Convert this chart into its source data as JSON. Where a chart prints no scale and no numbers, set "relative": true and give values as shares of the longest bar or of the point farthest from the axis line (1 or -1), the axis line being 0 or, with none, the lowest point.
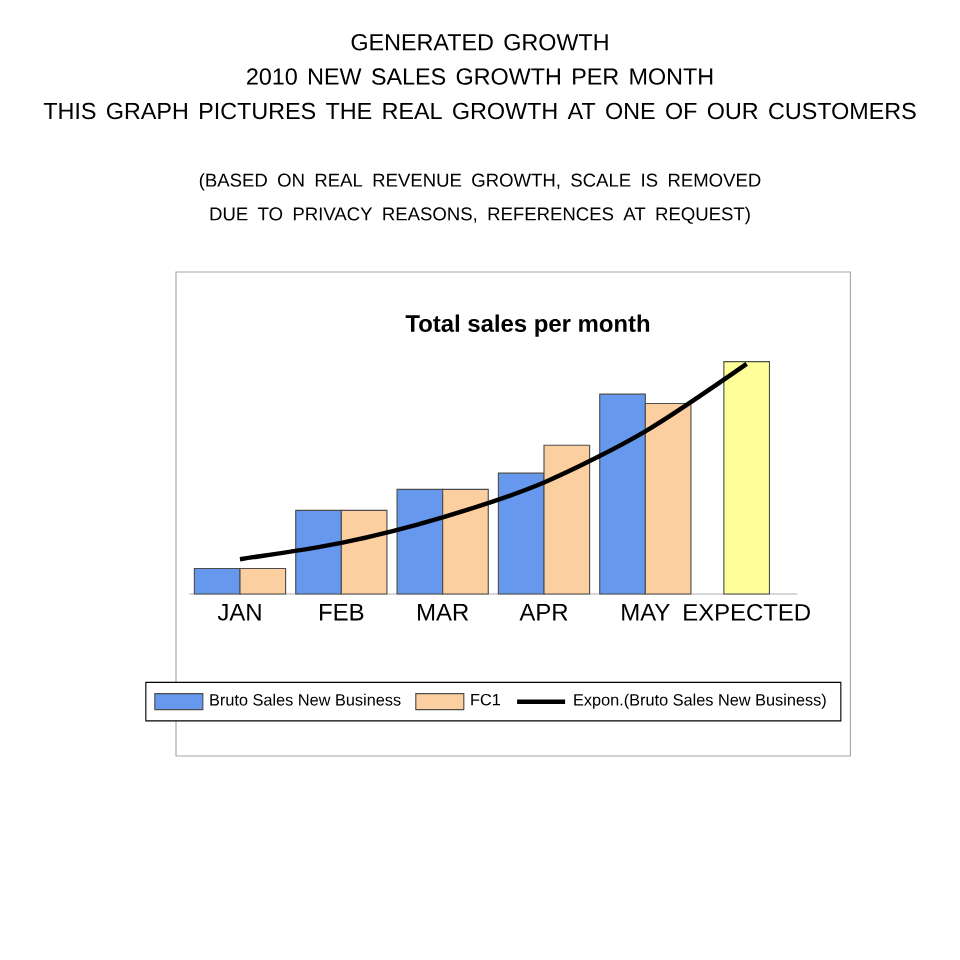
{
  "chart_data": {
    "type": "bar",
    "title": "GENERATED GROWTH",
    "subtitle": "2010 NEW SALES GROWTH PER MONTH",
    "annotations": [
      "THIS GRAPH PICTURES THE REAL GROWTH AT ONE OF OUR CUSTOMERS",
      "(BASED ON REAL REVENUE GROWTH, SCALE IS REMOVED DUE TO PRIVACY REASONS, REFERENCES AT REQUEST)",
      "Total sales per month"
    ],
    "categories": [
      "JAN",
      "FEB",
      "MAR",
      "APR",
      "MAY",
      "EXPECTED"
    ],
    "relative": true,
    "legend": "bottom",
    "marker": "none",
    "series": [
      {
        "name": "Bruto Sales New Business",
        "color": "#6699ee",
        "values": [
          0.11,
          0.36,
          0.45,
          0.52,
          0.86,
          null
        ]
      },
      {
        "name": "FC1",
        "color": "#fbcf9f",
        "colors": [
          "#fbcf9f",
          "#fbcf9f",
          "#fbcf9f",
          "#fbcf9f",
          "#fbcf9f",
          "#ffff99"
        ],
        "values": [
          0.11,
          0.36,
          0.45,
          0.64,
          0.82,
          1
        ]
      },
      {
        "name": "Expon.(Bruto Sales New Business)",
        "type": "line",
        "color": "#000000",
        "values": [
          0.15,
          0.22,
          0.33,
          0.48,
          0.7,
          0.99
        ]
      }
    ]
  }
}
